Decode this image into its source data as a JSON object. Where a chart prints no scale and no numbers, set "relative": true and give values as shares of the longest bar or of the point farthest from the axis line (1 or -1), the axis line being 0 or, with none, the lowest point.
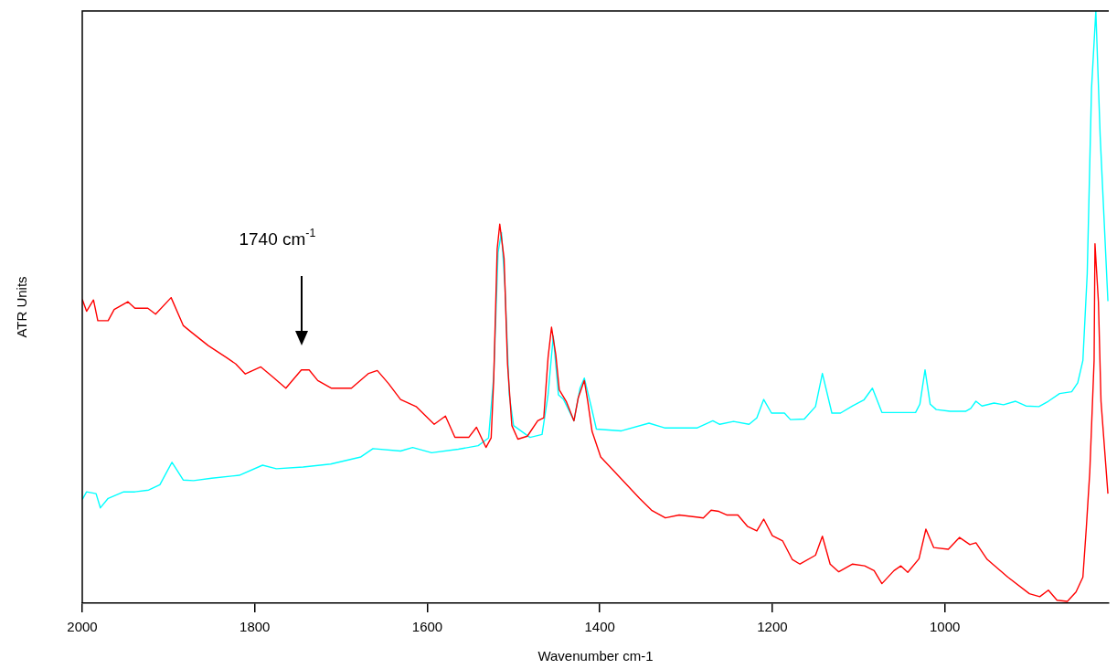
{
  "chart_data": {
    "type": "line",
    "xlabel": "Wavenumber cm-1",
    "ylabel": "ATR Units",
    "relative": true,
    "legend": false,
    "grid": false,
    "marker": "none",
    "xlim": [
      2000,
      810
    ],
    "xticks": [
      2000,
      1800,
      1600,
      1400,
      1200,
      1000
    ],
    "annotations": [
      "1740 cm$^{-1}$"
    ],
    "series": [
      {
        "color": "#ff0000",
        "x": [
          2000,
          1995,
          1987,
          1982,
          1970,
          1963,
          1947,
          1939,
          1924,
          1915,
          1897,
          1883,
          1873,
          1854,
          1833,
          1822,
          1811,
          1793,
          1780,
          1764,
          1746,
          1737,
          1727,
          1711,
          1688,
          1668,
          1658,
          1645,
          1631,
          1613,
          1592,
          1579,
          1568,
          1552,
          1543,
          1532,
          1526,
          1523,
          1519,
          1516,
          1511,
          1507,
          1502,
          1495,
          1484,
          1472,
          1465,
          1460,
          1456,
          1451,
          1447,
          1439,
          1430,
          1425,
          1418,
          1414,
          1409,
          1399,
          1354,
          1340,
          1324,
          1308,
          1280,
          1271,
          1262,
          1253,
          1240,
          1229,
          1218,
          1210,
          1200,
          1188,
          1177,
          1168,
          1150,
          1142,
          1133,
          1123,
          1107,
          1093,
          1082,
          1073,
          1059,
          1051,
          1043,
          1030,
          1022,
          1013,
          996,
          983,
          971,
          964,
          951,
          927,
          902,
          890,
          880,
          870,
          858,
          848,
          840,
          836,
          832,
          827,
          826,
          822,
          819,
          811
        ],
        "values": [
          0.513,
          0.493,
          0.512,
          0.477,
          0.477,
          0.496,
          0.509,
          0.498,
          0.498,
          0.488,
          0.516,
          0.469,
          0.457,
          0.435,
          0.415,
          0.404,
          0.387,
          0.399,
          0.383,
          0.363,
          0.394,
          0.394,
          0.376,
          0.363,
          0.363,
          0.388,
          0.393,
          0.371,
          0.344,
          0.332,
          0.302,
          0.316,
          0.28,
          0.28,
          0.297,
          0.263,
          0.279,
          0.379,
          0.598,
          0.64,
          0.582,
          0.404,
          0.3,
          0.277,
          0.282,
          0.308,
          0.313,
          0.415,
          0.466,
          0.419,
          0.36,
          0.341,
          0.308,
          0.347,
          0.376,
          0.341,
          0.29,
          0.247,
          0.177,
          0.157,
          0.144,
          0.149,
          0.144,
          0.157,
          0.155,
          0.149,
          0.149,
          0.13,
          0.122,
          0.142,
          0.114,
          0.105,
          0.074,
          0.066,
          0.081,
          0.113,
          0.066,
          0.053,
          0.066,
          0.063,
          0.055,
          0.033,
          0.055,
          0.063,
          0.052,
          0.075,
          0.125,
          0.094,
          0.091,
          0.111,
          0.099,
          0.102,
          0.074,
          0.044,
          0.016,
          0.011,
          0.022,
          0.005,
          0.003,
          0.019,
          0.044,
          0.128,
          0.222,
          0.41,
          0.607,
          0.509,
          0.341,
          0.185
        ]
      },
      {
        "color": "#00ffff",
        "x": [
          2000,
          1995,
          1984,
          1979,
          1970,
          1952,
          1939,
          1923,
          1910,
          1896,
          1883,
          1871,
          1850,
          1818,
          1791,
          1775,
          1744,
          1712,
          1677,
          1663,
          1631,
          1617,
          1595,
          1564,
          1541,
          1529,
          1523,
          1518,
          1514,
          1510,
          1505,
          1500,
          1481,
          1467,
          1460,
          1454,
          1448,
          1442,
          1430,
          1423,
          1418,
          1410,
          1404,
          1375,
          1343,
          1325,
          1287,
          1269,
          1261,
          1245,
          1227,
          1218,
          1210,
          1201,
          1186,
          1179,
          1163,
          1150,
          1142,
          1131,
          1121,
          1107,
          1094,
          1084,
          1073,
          1034,
          1029,
          1023,
          1017,
          1010,
          994,
          976,
          970,
          964,
          957,
          943,
          932,
          918,
          906,
          891,
          880,
          867,
          853,
          846,
          840,
          835,
          830,
          825,
          820,
          811
        ],
        "values": [
          0.175,
          0.188,
          0.185,
          0.161,
          0.177,
          0.188,
          0.188,
          0.191,
          0.2,
          0.238,
          0.208,
          0.207,
          0.211,
          0.216,
          0.233,
          0.227,
          0.23,
          0.235,
          0.247,
          0.261,
          0.257,
          0.263,
          0.254,
          0.26,
          0.266,
          0.279,
          0.383,
          0.592,
          0.626,
          0.535,
          0.352,
          0.3,
          0.28,
          0.285,
          0.352,
          0.451,
          0.352,
          0.344,
          0.308,
          0.363,
          0.38,
          0.332,
          0.294,
          0.291,
          0.304,
          0.296,
          0.296,
          0.308,
          0.302,
          0.307,
          0.302,
          0.313,
          0.344,
          0.321,
          0.321,
          0.31,
          0.311,
          0.332,
          0.388,
          0.321,
          0.321,
          0.333,
          0.343,
          0.363,
          0.322,
          0.322,
          0.336,
          0.394,
          0.336,
          0.327,
          0.324,
          0.324,
          0.329,
          0.341,
          0.333,
          0.338,
          0.335,
          0.341,
          0.333,
          0.332,
          0.341,
          0.354,
          0.357,
          0.372,
          0.41,
          0.556,
          0.869,
          1,
          0.79,
          0.51
        ]
      }
    ]
  }
}
